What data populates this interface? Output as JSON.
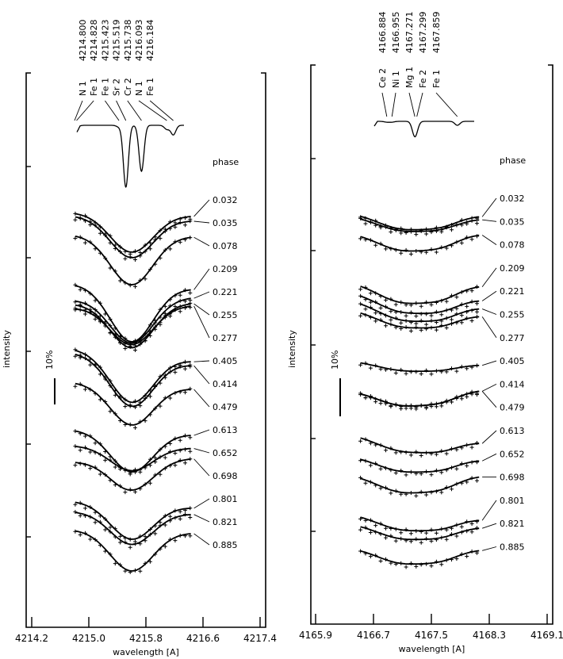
{
  "chart_data": [
    {
      "type": "line",
      "title": "",
      "xlabel": "wavelength [A]",
      "ylabel": "intensity",
      "xlim": [
        4214.2,
        4217.4
      ],
      "xticks": [
        "4214.2",
        "4215.0",
        "4215.8",
        "4216.6",
        "4217.4"
      ],
      "scale_bar_label": "10%",
      "phase_header": "phase",
      "line_center": 4215.6,
      "line_sigma": 0.3,
      "profile_range": [
        4214.81,
        4216.44
      ],
      "reference_spectrum": {
        "lines": [
          {
            "ion": "N 1",
            "wavelength": "4214.800",
            "w": 4214.8,
            "depth": 1
          },
          {
            "ion": "Fe 1",
            "wavelength": "4214.828",
            "w": 4214.828,
            "depth": 2
          },
          {
            "ion": "Fe 1",
            "wavelength": "4215.423",
            "w": 4215.423,
            "depth": 2
          },
          {
            "ion": "Sr 2",
            "wavelength": "4215.519",
            "w": 4215.519,
            "depth": 78
          },
          {
            "ion": "Cr 2",
            "wavelength": "4215.738",
            "w": 4215.738,
            "depth": 58
          },
          {
            "ion": "N 1",
            "wavelength": "4216.093",
            "w": 4216.093,
            "depth": 5
          },
          {
            "ion": "Fe 1",
            "wavelength": "4216.184",
            "w": 4216.184,
            "depth": 12
          }
        ]
      },
      "phases": [
        {
          "phase": "0.032",
          "start": 44,
          "end": 45,
          "depth": 12
        },
        {
          "phase": "0.035",
          "start": 45,
          "end": 46.5,
          "depth": 12.5
        },
        {
          "phase": "0.078",
          "start": 51,
          "end": 51.5,
          "depth": 15.5
        },
        {
          "phase": "0.209",
          "start": 66.5,
          "end": 68,
          "depth": 17.5
        },
        {
          "phase": "0.221",
          "start": 71.5,
          "end": 70.75,
          "depth": 14
        },
        {
          "phase": "0.255",
          "start": 72.75,
          "end": 72.5,
          "depth": 14
        },
        {
          "phase": "0.277",
          "start": 74,
          "end": 73.25,
          "depth": 12
        },
        {
          "phase": "0.405",
          "start": 87,
          "end": 90.75,
          "depth": 15
        },
        {
          "phase": "0.414",
          "start": 88.25,
          "end": 92,
          "depth": 15
        },
        {
          "phase": "0.479",
          "start": 97.5,
          "end": 99.5,
          "depth": 12.5
        },
        {
          "phase": "0.613",
          "start": 112.5,
          "end": 114,
          "depth": 12.5
        },
        {
          "phase": "0.652",
          "start": 117.5,
          "end": 118.25,
          "depth": 7.5
        },
        {
          "phase": "0.698",
          "start": 122.5,
          "end": 121.5,
          "depth": 9.5
        },
        {
          "phase": "0.801",
          "start": 135,
          "end": 137,
          "depth": 11
        },
        {
          "phase": "0.821",
          "start": 138.25,
          "end": 139,
          "depth": 10
        },
        {
          "phase": "0.885",
          "start": 144,
          "end": 145,
          "depth": 12.5
        }
      ]
    },
    {
      "type": "line",
      "title": "",
      "xlabel": "wavelength [A]",
      "ylabel": "intensity",
      "xlim": [
        4165.9,
        4169.1
      ],
      "xticks": [
        "4165.9",
        "4166.7",
        "4167.5",
        "4168.3",
        "4169.1"
      ],
      "scale_bar_label": "10%",
      "phase_header": "phase",
      "line_center": 4167.1,
      "line_sigma": 0.35,
      "profile_range": [
        4166.52,
        4168.17
      ],
      "reference_spectrum": {
        "lines": [
          {
            "ion": "Ce 2",
            "wavelength": "4166.884",
            "w": 4166.884,
            "depth": 1
          },
          {
            "ion": "Ni 1",
            "wavelength": "4166.955",
            "w": 4166.955,
            "depth": 1
          },
          {
            "ion": "Mg 1",
            "wavelength": "4167.271",
            "w": 4167.271,
            "depth": 18
          },
          {
            "ion": "Fe 2",
            "wavelength": "4167.299",
            "w": 4167.299,
            "depth": 2
          },
          {
            "ion": "Fe 1",
            "wavelength": "4167.859",
            "w": 4167.859,
            "depth": 5
          }
        ]
      },
      "phases": [
        {
          "phase": "0.032",
          "start": 44,
          "end": 45,
          "depth": 5.5
        },
        {
          "phase": "0.035",
          "start": 45,
          "end": 46,
          "depth": 5
        },
        {
          "phase": "0.078",
          "start": 50.25,
          "end": 50.75,
          "depth": 6.25
        },
        {
          "phase": "0.209",
          "start": 65.75,
          "end": 67,
          "depth": 7
        },
        {
          "phase": "0.221",
          "start": 69,
          "end": 71.5,
          "depth": 6.25
        },
        {
          "phase": "0.255",
          "start": 71.5,
          "end": 74,
          "depth": 6.25
        },
        {
          "phase": "0.277",
          "start": 74.5,
          "end": 76.5,
          "depth": 5.5
        },
        {
          "phase": "0.405",
          "start": 90.75,
          "end": 92,
          "depth": 3
        },
        {
          "phase": "0.414",
          "start": 100,
          "end": 100,
          "depth": 5.5
        },
        {
          "phase": "0.479",
          "start": 100,
          "end": 100,
          "depth": 5.5
        },
        {
          "phase": "0.613",
          "start": 114,
          "end": 116.5,
          "depth": 5
        },
        {
          "phase": "0.652",
          "start": 120.75,
          "end": 122,
          "depth": 5
        },
        {
          "phase": "0.698",
          "start": 126.5,
          "end": 127,
          "depth": 6.25
        },
        {
          "phase": "0.801",
          "start": 139,
          "end": 140.75,
          "depth": 5
        },
        {
          "phase": "0.821",
          "start": 142,
          "end": 143.25,
          "depth": 5
        },
        {
          "phase": "0.885",
          "start": 149.5,
          "end": 150.25,
          "depth": 5.5
        }
      ]
    }
  ]
}
